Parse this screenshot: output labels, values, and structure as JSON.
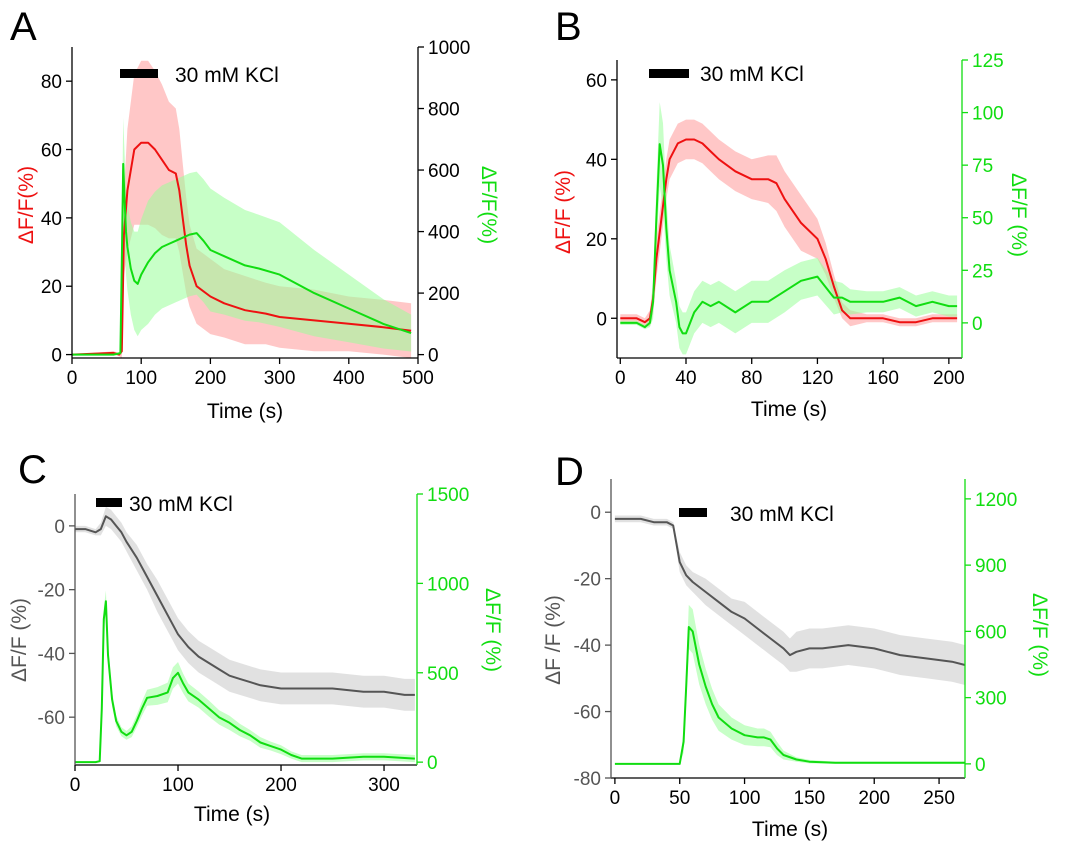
{
  "stimulus_label": "30 mM KCl",
  "colors": {
    "red": "#ee1111",
    "green": "#11dd11",
    "gray": "#555555",
    "red_band": "#ff9999",
    "green_band": "#99ff99",
    "gray_band": "#c8c8c8",
    "black": "#000000"
  },
  "chart_data": [
    {
      "panel": "A",
      "type": "line",
      "xlabel": "Time (s)",
      "ylabel_left": "ΔF/F(%)",
      "ylabel_right": "ΔF/F(%)",
      "left_axis_color": "black",
      "right_axis_color": "black",
      "xlim": [
        0,
        500
      ],
      "ylim_left": [
        -1,
        90
      ],
      "ylim_right": [
        -11,
        1000
      ],
      "xticks": [
        0,
        100,
        200,
        300,
        400,
        500
      ],
      "yticks_left": [
        0,
        20,
        40,
        60,
        80
      ],
      "yticks_right": [
        0,
        200,
        400,
        600,
        800,
        1000
      ],
      "stimulus": [
        70,
        125
      ],
      "series": [
        {
          "name": "red",
          "axis": "left",
          "color": "red",
          "x": [
            0,
            60,
            68,
            72,
            75,
            80,
            90,
            100,
            110,
            120,
            130,
            140,
            150,
            155,
            160,
            165,
            170,
            180,
            200,
            220,
            250,
            280,
            300,
            350,
            400,
            450,
            490
          ],
          "y": [
            0,
            0.5,
            0,
            1,
            35,
            48,
            60,
            62,
            62,
            60,
            57,
            54,
            53,
            48,
            40,
            32,
            26,
            20,
            17,
            15,
            13,
            12,
            11,
            10,
            9,
            8,
            7
          ],
          "band": [
            0,
            0.5,
            0.5,
            2,
            12,
            18,
            22,
            24,
            24,
            23,
            22,
            20,
            19,
            18,
            16,
            14,
            12,
            11,
            11,
            10,
            10,
            9,
            9,
            9,
            8,
            8,
            8
          ]
        },
        {
          "name": "green",
          "axis": "right",
          "color": "green",
          "x": [
            0,
            60,
            70,
            72,
            74,
            76,
            78,
            80,
            85,
            90,
            95,
            100,
            110,
            120,
            130,
            140,
            150,
            160,
            170,
            180,
            190,
            200,
            220,
            250,
            270,
            300,
            350,
            400,
            450,
            490
          ],
          "y": [
            0,
            0,
            5,
            300,
            620,
            500,
            400,
            350,
            280,
            240,
            230,
            260,
            300,
            330,
            350,
            360,
            370,
            380,
            390,
            395,
            370,
            340,
            320,
            290,
            280,
            260,
            200,
            150,
            100,
            70
          ],
          "band": [
            0,
            0,
            5,
            80,
            150,
            150,
            140,
            140,
            150,
            160,
            170,
            180,
            200,
            200,
            200,
            200,
            200,
            200,
            200,
            200,
            200,
            200,
            190,
            180,
            175,
            170,
            140,
            110,
            80,
            60
          ]
        }
      ]
    },
    {
      "panel": "B",
      "type": "line",
      "xlabel": "Time (s)",
      "ylabel_left": "ΔF/F (%)",
      "ylabel_right": "ΔF/F (%)",
      "left_axis_color": "black",
      "right_axis_color": "green",
      "xlim": [
        -2,
        208
      ],
      "ylim_left": [
        -10,
        65
      ],
      "ylim_right": [
        -16.7,
        125
      ],
      "xticks": [
        0,
        40,
        80,
        120,
        160,
        200
      ],
      "yticks_left": [
        0,
        20,
        40,
        60
      ],
      "yticks_right": [
        0,
        25,
        50,
        75,
        100,
        125
      ],
      "stimulus": [
        15,
        33
      ],
      "series": [
        {
          "name": "red",
          "axis": "left",
          "color": "red",
          "x": [
            0,
            10,
            15,
            18,
            20,
            22,
            25,
            28,
            30,
            35,
            40,
            45,
            50,
            55,
            60,
            70,
            80,
            90,
            95,
            100,
            110,
            120,
            125,
            130,
            135,
            140,
            150,
            160,
            170,
            180,
            190,
            200,
            205
          ],
          "y": [
            0,
            0,
            -1,
            0,
            5,
            15,
            25,
            35,
            40,
            44,
            45,
            45,
            44,
            42,
            40,
            37,
            35,
            35,
            34,
            30,
            24,
            20,
            15,
            8,
            2,
            0,
            0,
            0,
            -1,
            -1,
            0,
            0,
            0
          ],
          "band": [
            1,
            1,
            1,
            2,
            4,
            5,
            5,
            5,
            5,
            5,
            5,
            5,
            5,
            5,
            5,
            5,
            5,
            6,
            7,
            7,
            7,
            5,
            4,
            3,
            2,
            2,
            1,
            1,
            1,
            1,
            1,
            1,
            1
          ]
        },
        {
          "name": "green",
          "axis": "right",
          "color": "green",
          "x": [
            0,
            10,
            15,
            18,
            20,
            22,
            24,
            26,
            28,
            30,
            34,
            36,
            38,
            40,
            45,
            50,
            55,
            60,
            70,
            80,
            90,
            100,
            110,
            120,
            130,
            135,
            140,
            150,
            160,
            170,
            180,
            190,
            200,
            205
          ],
          "y": [
            0,
            0,
            -2,
            0,
            10,
            50,
            85,
            75,
            45,
            25,
            10,
            -2,
            -5,
            -5,
            5,
            10,
            8,
            10,
            5,
            10,
            10,
            15,
            20,
            22,
            12,
            12,
            10,
            10,
            10,
            12,
            8,
            10,
            8,
            8
          ],
          "band": [
            1,
            1,
            1,
            2,
            8,
            15,
            20,
            20,
            15,
            12,
            10,
            10,
            10,
            10,
            10,
            10,
            10,
            10,
            10,
            10,
            10,
            10,
            9,
            9,
            8,
            7,
            6,
            5,
            5,
            5,
            5,
            5,
            5,
            5
          ]
        }
      ]
    },
    {
      "panel": "C",
      "type": "line",
      "xlabel": "Time (s)",
      "ylabel_left": "ΔF/F (%)",
      "ylabel_right": "ΔF/F (%)",
      "left_axis_color": "gray",
      "right_axis_color": "green",
      "xlim": [
        0,
        332
      ],
      "ylim_left": [
        -75,
        10
      ],
      "ylim_right": [
        -16,
        1500
      ],
      "xticks": [
        0,
        100,
        200,
        300
      ],
      "yticks_left": [
        0,
        -20,
        -40,
        -60
      ],
      "yticks_right": [
        0,
        500,
        1000,
        1500
      ],
      "stimulus": [
        20,
        45
      ],
      "series": [
        {
          "name": "gray",
          "axis": "left",
          "color": "gray",
          "x": [
            0,
            10,
            20,
            25,
            30,
            35,
            40,
            45,
            50,
            60,
            70,
            80,
            90,
            100,
            110,
            120,
            130,
            140,
            150,
            160,
            170,
            180,
            200,
            220,
            250,
            280,
            300,
            320,
            330
          ],
          "y": [
            -1,
            -1,
            -2,
            -1,
            3,
            2,
            0,
            -2,
            -5,
            -10,
            -16,
            -22,
            -28,
            -34,
            -38,
            -41,
            -43,
            -45,
            -47,
            -48,
            -49,
            -50,
            -51,
            -51,
            -51,
            -52,
            -52,
            -53,
            -53
          ],
          "band": [
            1,
            1,
            1,
            2,
            3,
            3,
            3,
            3,
            3,
            4,
            4,
            5,
            5,
            5,
            5,
            5,
            5,
            5,
            5,
            5,
            5,
            5,
            5,
            5,
            5,
            5,
            5,
            5,
            5
          ]
        },
        {
          "name": "green",
          "axis": "right",
          "color": "green",
          "x": [
            0,
            20,
            24,
            26,
            28,
            30,
            32,
            36,
            40,
            45,
            50,
            55,
            60,
            65,
            70,
            80,
            90,
            95,
            100,
            105,
            110,
            120,
            130,
            140,
            150,
            160,
            170,
            180,
            190,
            200,
            210,
            220,
            250,
            280,
            300,
            330
          ],
          "y": [
            0,
            0,
            5,
            300,
            800,
            900,
            600,
            350,
            230,
            170,
            150,
            170,
            230,
            300,
            360,
            370,
            390,
            470,
            500,
            440,
            390,
            350,
            300,
            250,
            220,
            180,
            150,
            110,
            90,
            70,
            40,
            20,
            20,
            30,
            30,
            20
          ],
          "band": [
            1,
            1,
            5,
            40,
            60,
            60,
            50,
            40,
            30,
            25,
            25,
            30,
            35,
            40,
            45,
            50,
            55,
            60,
            60,
            55,
            50,
            45,
            45,
            40,
            40,
            35,
            30,
            30,
            25,
            25,
            20,
            20,
            20,
            20,
            20,
            20
          ]
        }
      ]
    },
    {
      "panel": "D",
      "type": "line",
      "xlabel": "Time (s)",
      "ylabel_left": "ΔF /F (%)",
      "ylabel_right": "ΔF/F (%)",
      "left_axis_color": "gray",
      "right_axis_color": "green",
      "xlim": [
        -3,
        270
      ],
      "ylim_left": [
        -80,
        10
      ],
      "ylim_right": [
        -64,
        1290
      ],
      "xticks": [
        0,
        50,
        100,
        150,
        200,
        250
      ],
      "yticks_left": [
        0,
        -20,
        -40,
        -60,
        -80
      ],
      "yticks_right": [
        0,
        300,
        600,
        900,
        1200
      ],
      "stimulus": [
        50,
        68
      ],
      "series": [
        {
          "name": "gray",
          "axis": "left",
          "color": "gray",
          "x": [
            0,
            10,
            20,
            30,
            40,
            45,
            50,
            55,
            60,
            70,
            80,
            90,
            100,
            110,
            120,
            130,
            135,
            140,
            150,
            160,
            180,
            200,
            220,
            240,
            260,
            270
          ],
          "y": [
            -2,
            -2,
            -2,
            -3,
            -3,
            -4,
            -15,
            -19,
            -21,
            -24,
            -27,
            -30,
            -32,
            -35,
            -38,
            -41,
            -43,
            -42,
            -41,
            -41,
            -40,
            -41,
            -43,
            -44,
            -45,
            -46
          ],
          "band": [
            1,
            1,
            1,
            1,
            1,
            1,
            3,
            3,
            3,
            4,
            4,
            4,
            5,
            5,
            5,
            5,
            5,
            6,
            6,
            6,
            6,
            6,
            6,
            6,
            6,
            6
          ]
        },
        {
          "name": "green",
          "axis": "right",
          "color": "green",
          "x": [
            0,
            20,
            40,
            50,
            53,
            55,
            57,
            60,
            65,
            70,
            75,
            80,
            90,
            100,
            110,
            115,
            120,
            125,
            130,
            140,
            150,
            170,
            200,
            230,
            260,
            270
          ],
          "y": [
            0,
            0,
            0,
            0,
            100,
            350,
            620,
            600,
            450,
            350,
            270,
            210,
            160,
            130,
            120,
            120,
            110,
            70,
            40,
            20,
            10,
            5,
            5,
            5,
            5,
            5
          ],
          "band": [
            1,
            1,
            1,
            1,
            50,
            80,
            100,
            100,
            90,
            80,
            70,
            60,
            50,
            45,
            40,
            40,
            35,
            30,
            20,
            10,
            8,
            5,
            5,
            5,
            5,
            5
          ]
        }
      ]
    }
  ]
}
